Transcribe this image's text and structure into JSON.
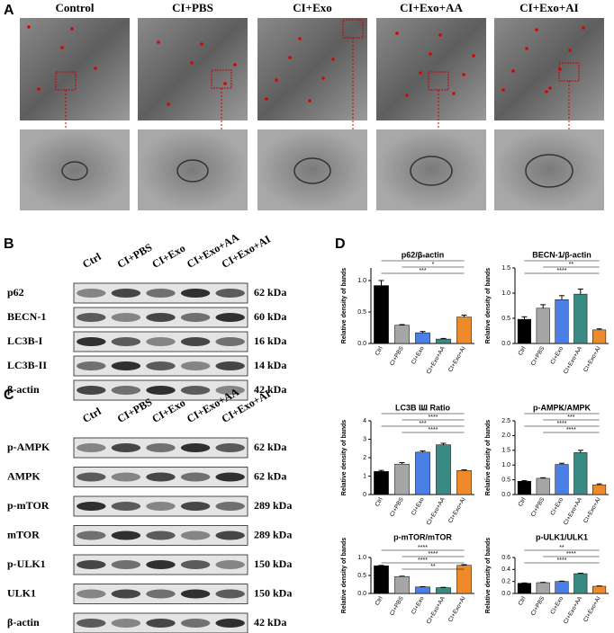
{
  "panel_a": {
    "label": "A",
    "groups": [
      "Control",
      "CI+PBS",
      "CI+Exo",
      "CI+Exo+AA",
      "CI+Exo+AI"
    ]
  },
  "panel_b": {
    "label": "B",
    "lanes": [
      "Ctrl",
      "CI+PBS",
      "CI+Exo",
      "CI+Exo+AA",
      "CI+Exo+AI"
    ],
    "rows": [
      {
        "protein": "p62",
        "size": "62 kDa"
      },
      {
        "protein": "BECN-1",
        "size": "60 kDa"
      },
      {
        "protein": "LC3B-I",
        "size": "16 kDa"
      },
      {
        "protein": "LC3B-II",
        "size": "14 kDa"
      },
      {
        "protein": "β-actin",
        "size": "42 kDa"
      }
    ]
  },
  "panel_c": {
    "label": "C",
    "lanes": [
      "Ctrl",
      "CI+PBS",
      "CI+Exo",
      "CI+Exo+AA",
      "CI+Exo+AI"
    ],
    "rows": [
      {
        "protein": "p-AMPK",
        "size": "62 kDa"
      },
      {
        "protein": "AMPK",
        "size": "62 kDa"
      },
      {
        "protein": "p-mTOR",
        "size": "289 kDa"
      },
      {
        "protein": "mTOR",
        "size": "289 kDa"
      },
      {
        "protein": "p-ULK1",
        "size": "150 kDa"
      },
      {
        "protein": "ULK1",
        "size": "150 kDa"
      },
      {
        "protein": "β-actin",
        "size": "42 kDa"
      }
    ]
  },
  "panel_d": {
    "label": "D"
  },
  "chart_data": [
    {
      "type": "bar",
      "title": "p62/β-actin",
      "y_label": "Relative density of bands",
      "categories": [
        "Ctrl",
        "CI+PBS",
        "CI+Exo",
        "CI+Exo+AA",
        "CI+Exo+AI"
      ],
      "values": [
        0.92,
        0.29,
        0.17,
        0.07,
        0.42
      ],
      "errors": [
        0.08,
        0.01,
        0.02,
        0.01,
        0.03
      ],
      "colors": [
        "#000000",
        "#a6a6a6",
        "#4a7fe6",
        "#3a8a84",
        "#ee8a2a"
      ],
      "ylim": [
        0,
        1.2
      ],
      "yticks": [
        {
          "value": 0,
          "label": "0.0"
        },
        {
          "value": 0.5,
          "label": "0.5"
        },
        {
          "value": 1,
          "label": "1.0"
        }
      ],
      "annotations": [
        "****",
        "*",
        "***"
      ]
    },
    {
      "type": "bar",
      "title": "BECN-1/β-actin",
      "y_label": "Relative density of bands",
      "categories": [
        "Ctrl",
        "CI+PBS",
        "CI+Exo",
        "CI+Exo+AA",
        "CI+Exo+AI"
      ],
      "values": [
        0.48,
        0.7,
        0.87,
        0.98,
        0.27
      ],
      "errors": [
        0.05,
        0.07,
        0.08,
        0.1,
        0.02
      ],
      "colors": [
        "#000000",
        "#a6a6a6",
        "#4a7fe6",
        "#3a8a84",
        "#ee8a2a"
      ],
      "ylim": [
        0,
        1.5
      ],
      "yticks": [
        {
          "value": 0,
          "label": "0.0"
        },
        {
          "value": 0.5,
          "label": "0.5"
        },
        {
          "value": 1,
          "label": "1.0"
        },
        {
          "value": 1.5,
          "label": "1.5"
        }
      ],
      "annotations": [
        "*",
        "**",
        "****"
      ]
    },
    {
      "type": "bar",
      "title": "LC3B II/I Ratio",
      "y_label": "Relative density of bands",
      "categories": [
        "Ctrl",
        "CI+PBS",
        "CI+Exo",
        "CI+Exo+AA",
        "CI+Exo+AI"
      ],
      "values": [
        1.25,
        1.65,
        2.3,
        2.7,
        1.3
      ],
      "errors": [
        0.06,
        0.08,
        0.07,
        0.08,
        0.04
      ],
      "colors": [
        "#000000",
        "#a6a6a6",
        "#4a7fe6",
        "#3a8a84",
        "#ee8a2a"
      ],
      "ylim": [
        0,
        4
      ],
      "yticks": [
        0,
        1,
        2,
        3,
        4
      ],
      "annotations": [
        "***",
        "****",
        "***",
        "****"
      ]
    },
    {
      "type": "bar",
      "title": "p-AMPK/AMPK",
      "y_label": "Relative density of bands",
      "categories": [
        "Ctrl",
        "CI+PBS",
        "CI+Exo",
        "CI+Exo+AA",
        "CI+Exo+AI"
      ],
      "values": [
        0.45,
        0.55,
        1.02,
        1.42,
        0.33
      ],
      "errors": [
        0.02,
        0.02,
        0.04,
        0.08,
        0.03
      ],
      "colors": [
        "#000000",
        "#a6a6a6",
        "#4a7fe6",
        "#3a8a84",
        "#ee8a2a"
      ],
      "ylim": [
        0,
        2.5
      ],
      "yticks": [
        {
          "value": 0,
          "label": "0.0"
        },
        {
          "value": 0.5,
          "label": "0.5"
        },
        {
          "value": 1,
          "label": "1.0"
        },
        {
          "value": 1.5,
          "label": "1.5"
        },
        {
          "value": 2,
          "label": "2.0"
        },
        {
          "value": 2.5,
          "label": "2.5"
        }
      ],
      "annotations": [
        "*",
        "***",
        "****",
        "****"
      ]
    },
    {
      "type": "bar",
      "title": "p-mTOR/mTOR",
      "y_label": "Relative density of bands",
      "categories": [
        "Ctrl",
        "CI+PBS",
        "CI+Exo",
        "CI+Exo+AA",
        "CI+Exo+AI"
      ],
      "values": [
        0.77,
        0.47,
        0.18,
        0.16,
        0.78
      ],
      "errors": [
        0.01,
        0.01,
        0.01,
        0.01,
        0.02
      ],
      "colors": [
        "#000000",
        "#a6a6a6",
        "#4a7fe6",
        "#3a8a84",
        "#ee8a2a"
      ],
      "ylim": [
        0,
        1
      ],
      "yticks": [
        {
          "value": 0,
          "label": "0.0"
        },
        {
          "value": 0.5,
          "label": "0.5"
        },
        {
          "value": 1,
          "label": "1.0"
        }
      ],
      "annotations": [
        "****",
        "****",
        "****",
        "**"
      ]
    },
    {
      "type": "bar",
      "title": "p-ULK1/ULK1",
      "y_label": "Relative density of bands",
      "categories": [
        "Ctrl",
        "CI+PBS",
        "CI+Exo",
        "CI+Exo+AA",
        "CI+Exo+AI"
      ],
      "values": [
        0.17,
        0.18,
        0.2,
        0.33,
        0.12
      ],
      "errors": [
        0.005,
        0.005,
        0.005,
        0.008,
        0.005
      ],
      "colors": [
        "#000000",
        "#a6a6a6",
        "#4a7fe6",
        "#3a8a84",
        "#ee8a2a"
      ],
      "ylim": [
        0,
        0.6
      ],
      "yticks": [
        {
          "value": 0,
          "label": "0.0"
        },
        {
          "value": 0.2,
          "label": "0.2"
        },
        {
          "value": 0.4,
          "label": "0.4"
        },
        {
          "value": 0.6,
          "label": "0.6"
        }
      ],
      "annotations": [
        "**",
        "****",
        "****"
      ]
    }
  ]
}
